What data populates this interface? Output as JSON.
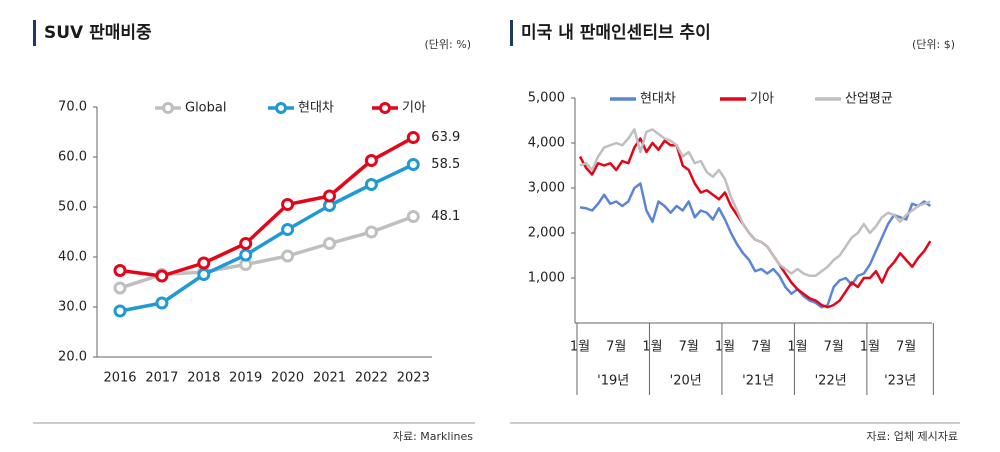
{
  "chart_data": [
    {
      "type": "line",
      "title": "SUV 판매비중",
      "unit": "(단위: %)",
      "source": "자료: Marklines",
      "categories": [
        "2016",
        "2017",
        "2018",
        "2019",
        "2020",
        "2021",
        "2022",
        "2023"
      ],
      "series": [
        {
          "name": "Global",
          "color": "#bfbfbf",
          "values": [
            33.8,
            36.5,
            37.0,
            38.5,
            40.2,
            42.7,
            45.0,
            48.1
          ]
        },
        {
          "name": "현대차",
          "color": "#1f9ad6",
          "values": [
            29.2,
            30.8,
            36.5,
            40.4,
            45.5,
            50.3,
            54.5,
            58.5
          ]
        },
        {
          "name": "기아",
          "color": "#e3061a",
          "values": [
            37.3,
            36.2,
            38.8,
            42.7,
            50.5,
            52.2,
            59.3,
            63.9
          ]
        }
      ],
      "ylim": [
        20,
        70
      ],
      "yticks": [
        {
          "value": 20,
          "label": "20.0"
        },
        {
          "value": 30,
          "label": "30.0"
        },
        {
          "value": 40,
          "label": "40.0"
        },
        {
          "value": 50,
          "label": "50.0"
        },
        {
          "value": 60,
          "label": "60.0"
        },
        {
          "value": 70,
          "label": "70.0"
        }
      ],
      "markers": true,
      "end_labels": true,
      "legend": "top"
    },
    {
      "type": "line",
      "title": "미국 내 판매인센티브 추이",
      "unit": "(단위: $)",
      "source": "자료: 업체 제시자료",
      "categories": [
        "1월",
        null,
        null,
        null,
        null,
        null,
        "7월",
        null,
        null,
        null,
        null,
        null,
        "1월",
        null,
        null,
        null,
        null,
        null,
        "7월",
        null,
        null,
        null,
        null,
        null,
        "1월",
        null,
        null,
        null,
        null,
        null,
        "7월",
        null,
        null,
        null,
        null,
        null,
        "1월",
        null,
        null,
        null,
        null,
        null,
        "7월",
        null,
        null,
        null,
        null,
        null,
        "1월",
        null,
        null,
        null,
        null,
        null,
        "7월",
        null,
        null,
        null,
        null
      ],
      "groups": [
        "'19년",
        "'20년",
        "'21년",
        "'22년",
        "'23년"
      ],
      "series": [
        {
          "name": "현대차",
          "color": "#5b86d6",
          "values": [
            2570,
            2550,
            2500,
            2650,
            2850,
            2650,
            2700,
            2600,
            2700,
            3000,
            3100,
            2500,
            2250,
            2700,
            2600,
            2450,
            2600,
            2500,
            2700,
            2350,
            2500,
            2450,
            2300,
            2550,
            2300,
            2000,
            1750,
            1550,
            1400,
            1150,
            1200,
            1100,
            1200,
            1050,
            800,
            650,
            750,
            600,
            500,
            450,
            350,
            400,
            800,
            950,
            1000,
            850,
            1050,
            1100,
            1300,
            1600,
            1900,
            2200,
            2400,
            2350,
            2300,
            2650,
            2600,
            2700,
            2600
          ]
        },
        {
          "name": "기아",
          "color": "#e3061a",
          "values": [
            3700,
            3450,
            3300,
            3550,
            3500,
            3550,
            3400,
            3600,
            3550,
            3900,
            4100,
            3800,
            4000,
            3850,
            4050,
            3950,
            3950,
            3500,
            3400,
            3100,
            2900,
            2950,
            2850,
            2750,
            2900,
            2600,
            2400,
            2200,
            2000,
            1850,
            1800,
            1700,
            1500,
            1300,
            1100,
            900,
            750,
            650,
            550,
            500,
            400,
            350,
            400,
            500,
            700,
            900,
            800,
            1000,
            1000,
            1150,
            900,
            1200,
            1350,
            1550,
            1400,
            1250,
            1450,
            1600,
            1820
          ]
        },
        {
          "name": "산업평균",
          "color": "#bfbfbf",
          "values": [
            3500,
            3550,
            3400,
            3700,
            3900,
            3950,
            4000,
            3950,
            4100,
            4300,
            3800,
            4250,
            4300,
            4200,
            4100,
            4050,
            3950,
            3700,
            3800,
            3550,
            3600,
            3350,
            3250,
            3400,
            3200,
            2800,
            2500,
            2200,
            2000,
            1850,
            1800,
            1700,
            1500,
            1300,
            1200,
            1100,
            1200,
            1100,
            1050,
            1050,
            1150,
            1250,
            1400,
            1500,
            1700,
            1900,
            2000,
            2200,
            2000,
            2150,
            2350,
            2450,
            2400,
            2250,
            2400,
            2500,
            2600,
            2650,
            2700
          ]
        }
      ],
      "ylim": [
        0,
        5000
      ],
      "yticks": [
        {
          "value": 1000,
          "label": "1,000"
        },
        {
          "value": 2000,
          "label": "2,000"
        },
        {
          "value": 3000,
          "label": "3,000"
        },
        {
          "value": 4000,
          "label": "4,000"
        },
        {
          "value": 5000,
          "label": "5,000"
        }
      ],
      "markers": false,
      "end_labels": false,
      "legend": "top"
    }
  ]
}
